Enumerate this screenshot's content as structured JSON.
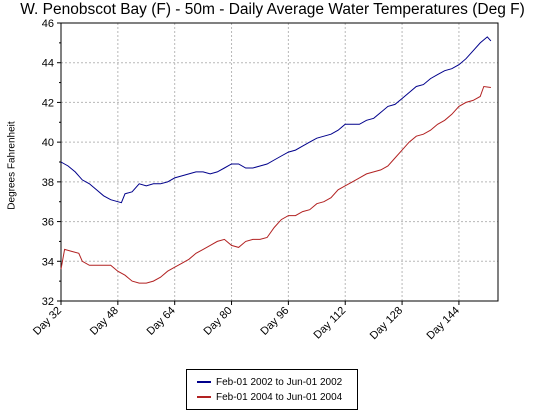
{
  "chart_data": {
    "type": "line",
    "title": "W. Penobscot Bay (F) - 50m - Daily Average Water Temperatures (Deg F)",
    "xlabel": "",
    "ylabel": "Degrees Fahrenheit",
    "xlim": [
      32,
      155
    ],
    "ylim": [
      32,
      46
    ],
    "x_ticks": [
      "Day 32",
      "Day 48",
      "Day 64",
      "Day 80",
      "Day 96",
      "Day 112",
      "Day 128",
      "Day 144"
    ],
    "x_tick_values": [
      32,
      48,
      64,
      80,
      96,
      112,
      128,
      144
    ],
    "y_ticks": [
      "32",
      "34",
      "36",
      "38",
      "40",
      "42",
      "44",
      "46"
    ],
    "y_tick_values": [
      32,
      34,
      36,
      38,
      40,
      42,
      44,
      46
    ],
    "grid": true,
    "legend_position": "bottom",
    "series": [
      {
        "name": "Feb-01 2002 to Jun-01 2002",
        "color": "#00008b",
        "x": [
          32,
          34,
          36,
          38,
          40,
          42,
          44,
          46,
          48,
          49,
          50,
          52,
          54,
          56,
          58,
          60,
          62,
          64,
          66,
          68,
          70,
          72,
          74,
          76,
          78,
          80,
          82,
          84,
          86,
          88,
          90,
          92,
          94,
          96,
          98,
          100,
          102,
          104,
          106,
          108,
          110,
          112,
          114,
          116,
          118,
          120,
          122,
          124,
          126,
          128,
          130,
          132,
          134,
          136,
          138,
          140,
          142,
          144,
          146,
          148,
          150,
          152,
          153
        ],
        "y": [
          39.0,
          38.8,
          38.5,
          38.1,
          37.9,
          37.6,
          37.3,
          37.1,
          37.0,
          36.95,
          37.4,
          37.5,
          37.9,
          37.8,
          37.9,
          37.9,
          38.0,
          38.2,
          38.3,
          38.4,
          38.5,
          38.5,
          38.4,
          38.5,
          38.7,
          38.9,
          38.9,
          38.7,
          38.7,
          38.8,
          38.9,
          39.1,
          39.3,
          39.5,
          39.6,
          39.8,
          40.0,
          40.2,
          40.3,
          40.4,
          40.6,
          40.9,
          40.9,
          40.9,
          41.1,
          41.2,
          41.5,
          41.8,
          41.9,
          42.2,
          42.5,
          42.8,
          42.9,
          43.2,
          43.4,
          43.6,
          43.7,
          43.9,
          44.2,
          44.6,
          45.0,
          45.3,
          45.1
        ]
      },
      {
        "name": "Feb-01 2004 to Jun-01 2004",
        "color": "#b22222",
        "x": [
          32,
          33,
          35,
          37,
          38,
          40,
          42,
          44,
          46,
          48,
          50,
          52,
          54,
          56,
          58,
          60,
          62,
          64,
          66,
          68,
          70,
          72,
          74,
          76,
          78,
          80,
          82,
          84,
          86,
          88,
          90,
          92,
          94,
          96,
          98,
          100,
          102,
          104,
          106,
          108,
          110,
          112,
          114,
          116,
          118,
          120,
          122,
          124,
          126,
          128,
          130,
          132,
          134,
          136,
          138,
          140,
          142,
          144,
          146,
          148,
          150,
          151,
          153
        ],
        "y": [
          33.6,
          34.6,
          34.5,
          34.4,
          34.0,
          33.8,
          33.8,
          33.8,
          33.8,
          33.5,
          33.3,
          33.0,
          32.9,
          32.9,
          33.0,
          33.2,
          33.5,
          33.7,
          33.9,
          34.1,
          34.4,
          34.6,
          34.8,
          35.0,
          35.1,
          34.8,
          34.7,
          35.0,
          35.1,
          35.1,
          35.2,
          35.7,
          36.1,
          36.3,
          36.3,
          36.5,
          36.6,
          36.9,
          37.0,
          37.2,
          37.6,
          37.8,
          38.0,
          38.2,
          38.4,
          38.5,
          38.6,
          38.8,
          39.2,
          39.6,
          40.0,
          40.3,
          40.4,
          40.6,
          40.9,
          41.1,
          41.4,
          41.8,
          42.0,
          42.1,
          42.3,
          42.8,
          42.75
        ]
      }
    ]
  }
}
